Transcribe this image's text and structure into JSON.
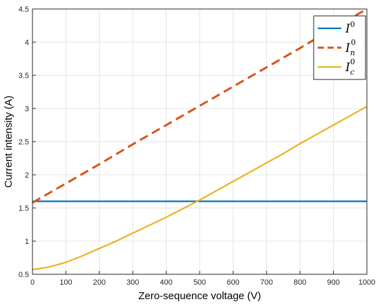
{
  "chart_data": {
    "type": "line",
    "title": "",
    "xlabel": "Zero-sequence voltage (V)",
    "ylabel": "Current intensity (A)",
    "xlim": [
      0,
      1000
    ],
    "ylim": [
      0.5,
      4.5
    ],
    "xticks": [
      0,
      100,
      200,
      300,
      400,
      500,
      600,
      700,
      800,
      900,
      1000
    ],
    "yticks": [
      0.5,
      1,
      1.5,
      2,
      2.5,
      3,
      3.5,
      4,
      4.5
    ],
    "xtick_labels": [
      "0",
      "100",
      "200",
      "300",
      "400",
      "500",
      "600",
      "700",
      "800",
      "900",
      "1000"
    ],
    "ytick_labels": [
      "0.5",
      "1",
      "1.5",
      "2",
      "2.5",
      "3",
      "3.5",
      "4",
      "4.5"
    ],
    "grid": true,
    "legend_position": "top-right",
    "series": [
      {
        "name": "I^0",
        "color": "#0072BD",
        "style": "solid",
        "x": [
          0,
          100,
          200,
          300,
          400,
          500,
          600,
          700,
          800,
          900,
          1000
        ],
        "y": [
          1.6,
          1.6,
          1.6,
          1.6,
          1.6,
          1.6,
          1.6,
          1.6,
          1.6,
          1.6,
          1.6
        ]
      },
      {
        "name": "I_n^0",
        "color": "#D95319",
        "style": "dashed",
        "x": [
          0,
          100,
          200,
          300,
          400,
          500,
          600,
          700,
          800,
          900,
          1000
        ],
        "y": [
          1.58,
          1.87,
          2.16,
          2.46,
          2.75,
          3.04,
          3.33,
          3.62,
          3.91,
          4.21,
          4.5
        ]
      },
      {
        "name": "I_c^0",
        "color": "#EDB120",
        "style": "solid",
        "x": [
          0,
          50,
          100,
          150,
          200,
          250,
          300,
          350,
          400,
          450,
          500,
          550,
          600,
          650,
          700,
          750,
          800,
          850,
          900,
          950,
          1000
        ],
        "y": [
          0.57,
          0.61,
          0.68,
          0.78,
          0.89,
          1.0,
          1.12,
          1.24,
          1.36,
          1.49,
          1.62,
          1.76,
          1.9,
          2.04,
          2.18,
          2.32,
          2.47,
          2.61,
          2.75,
          2.89,
          3.03
        ]
      }
    ]
  }
}
